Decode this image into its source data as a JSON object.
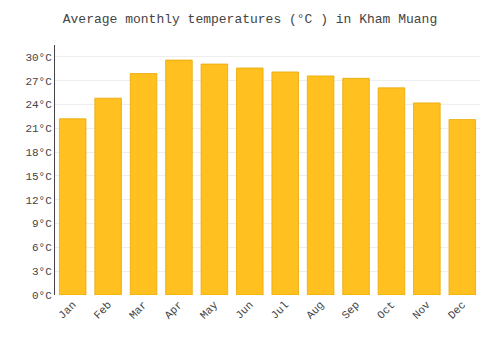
{
  "chart_data": {
    "type": "bar",
    "title": "Average monthly temperatures (°C ) in Kham Muang",
    "categories": [
      "Jan",
      "Feb",
      "Mar",
      "Apr",
      "May",
      "Jun",
      "Jul",
      "Aug",
      "Sep",
      "Oct",
      "Nov",
      "Dec"
    ],
    "values": [
      22.2,
      24.8,
      27.9,
      29.6,
      29.1,
      28.6,
      28.1,
      27.6,
      27.3,
      26.1,
      24.2,
      22.1
    ],
    "color": "#FFC020",
    "ylim": [
      0,
      31.5
    ],
    "yticks": [
      {
        "value": 0,
        "label": "0°C"
      },
      {
        "value": 3,
        "label": "3°C"
      },
      {
        "value": 6,
        "label": "6°C"
      },
      {
        "value": 9,
        "label": "9°C"
      },
      {
        "value": 12,
        "label": "12°C"
      },
      {
        "value": 15,
        "label": "15°C"
      },
      {
        "value": 18,
        "label": "18°C"
      },
      {
        "value": 21,
        "label": "21°C"
      },
      {
        "value": 24,
        "label": "24°C"
      },
      {
        "value": 27,
        "label": "27°C"
      },
      {
        "value": 30,
        "label": "30°C"
      }
    ],
    "grid": true
  }
}
